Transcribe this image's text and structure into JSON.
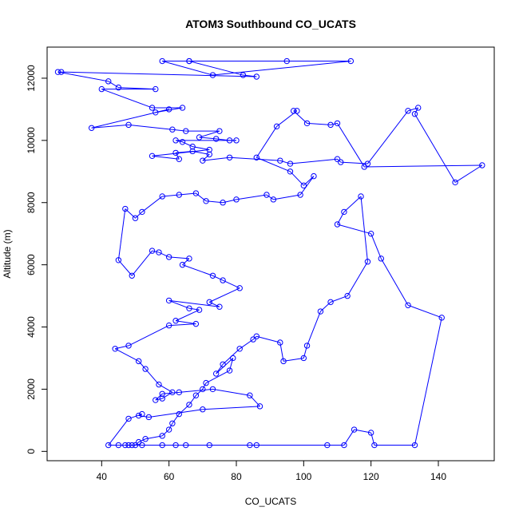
{
  "chart_data": {
    "type": "line",
    "title": "ATOM3 Southbound CO_UCATS",
    "xlabel": "CO_UCATS",
    "ylabel": "Altitude (m)",
    "xlim": [
      23.8,
      156.6
    ],
    "ylim": [
      -300,
      13000
    ],
    "x_ticks": [
      40,
      60,
      80,
      100,
      120,
      140
    ],
    "y_ticks": [
      0,
      2000,
      4000,
      6000,
      8000,
      10000,
      12000
    ],
    "grid": false,
    "legend": "none",
    "color": "#0000ff",
    "marker": "open-circle",
    "series": [
      {
        "x": [
          66,
          95,
          114,
          73,
          58,
          66,
          82,
          86,
          28,
          27,
          42,
          45,
          56,
          40,
          55,
          64,
          56,
          60,
          37,
          48,
          61,
          65,
          75,
          69,
          74,
          78,
          80,
          62,
          64,
          67,
          72,
          55,
          63,
          62,
          67,
          72,
          70,
          78,
          93,
          96,
          110,
          111,
          119,
          131,
          134,
          133,
          145,
          153,
          118,
          110,
          108,
          101,
          97,
          98,
          92,
          86,
          96,
          100,
          103,
          99,
          91,
          89,
          80,
          76,
          71,
          68,
          63,
          58,
          52,
          50,
          47,
          45,
          49,
          55,
          57,
          60,
          66,
          64,
          73,
          76,
          81,
          72,
          75,
          60,
          66,
          69,
          62,
          68,
          60,
          48,
          44,
          51,
          53,
          57,
          61,
          58,
          56,
          58,
          63,
          73,
          84,
          87,
          70,
          54,
          51,
          52,
          48,
          42,
          45,
          47,
          52,
          58,
          62,
          65,
          72,
          84,
          86,
          107,
          112,
          115,
          120,
          121,
          133,
          141,
          131,
          123,
          120,
          110,
          112,
          117,
          119,
          113,
          108,
          105,
          101,
          100,
          94,
          93,
          86,
          85,
          81,
          76,
          74,
          79,
          78,
          71,
          70,
          68,
          66,
          63,
          61,
          60,
          58,
          53,
          51,
          50,
          49,
          48
        ],
        "y": [
          12550,
          12550,
          12550,
          12100,
          12550,
          12550,
          12100,
          12050,
          12200,
          12200,
          11900,
          11700,
          11650,
          11650,
          11050,
          11050,
          10900,
          11000,
          10400,
          10500,
          10350,
          10300,
          10300,
          10100,
          10050,
          10000,
          10000,
          10000,
          9950,
          9800,
          9700,
          9500,
          9400,
          9600,
          9650,
          9550,
          9350,
          9450,
          9350,
          9250,
          9400,
          9300,
          9250,
          10950,
          11050,
          10850,
          8650,
          9200,
          9150,
          10550,
          10500,
          10550,
          10950,
          10950,
          10450,
          9450,
          9000,
          8550,
          8850,
          8250,
          8100,
          8250,
          8100,
          8000,
          8050,
          8300,
          8250,
          8200,
          7700,
          7500,
          7800,
          6150,
          5650,
          6450,
          6400,
          6250,
          6200,
          6000,
          5650,
          5500,
          5250,
          4800,
          4650,
          4850,
          4600,
          4550,
          4200,
          4100,
          4050,
          3400,
          3300,
          2900,
          2650,
          2150,
          1900,
          1700,
          1650,
          1850,
          1900,
          2000,
          1800,
          1450,
          1350,
          1100,
          1150,
          1200,
          1050,
          200,
          200,
          200,
          200,
          200,
          200,
          200,
          200,
          200,
          200,
          200,
          200,
          700,
          600,
          200,
          200,
          4300,
          4700,
          6200,
          7000,
          7300,
          7700,
          8200,
          6100,
          5000,
          4800,
          4500,
          3400,
          3000,
          2900,
          3500,
          3700,
          3600,
          3300,
          2800,
          2500,
          3000,
          2600,
          2200,
          2000,
          1800,
          1500,
          1200,
          900,
          700,
          500,
          400,
          300,
          200,
          200,
          200
        ]
      }
    ]
  }
}
